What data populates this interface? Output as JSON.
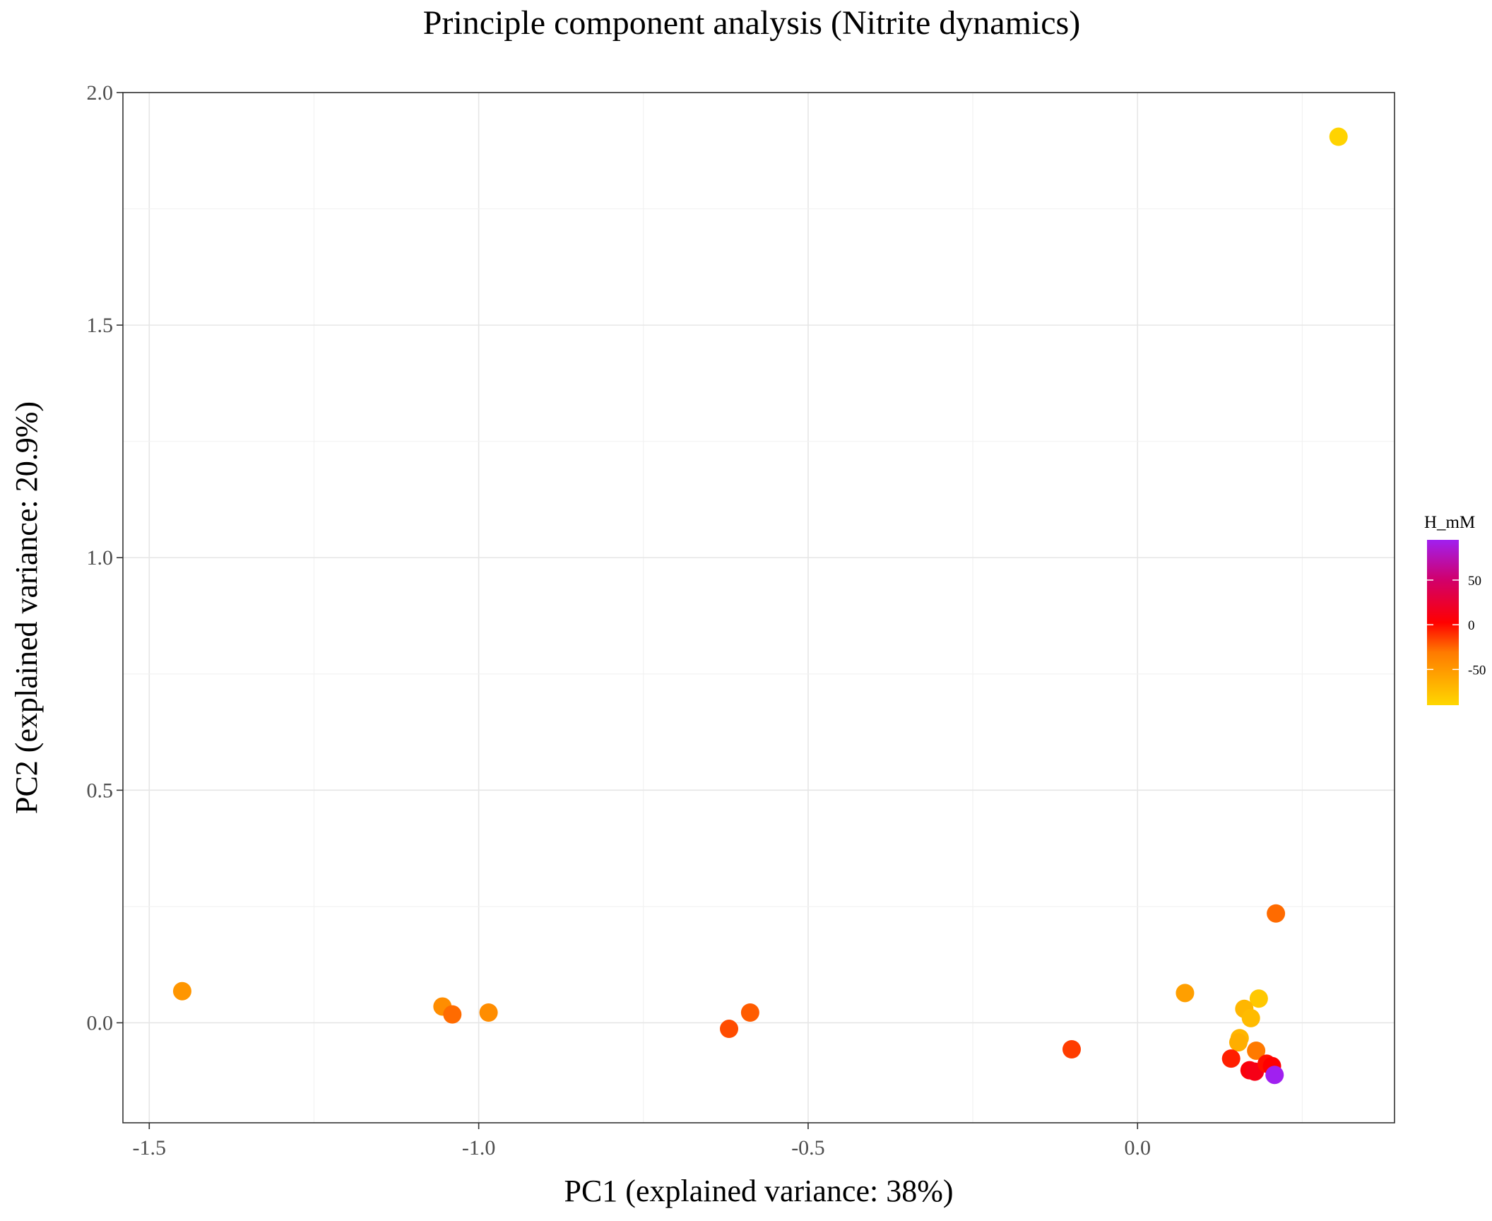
{
  "chart_data": {
    "type": "scatter",
    "title": "Principle component analysis (Nitrite dynamics)",
    "xlabel": "PC1 (explained variance: 38%)",
    "ylabel": "PC2 (explained variance: 20.9%)",
    "xlim": [
      -1.54,
      0.39
    ],
    "ylim": [
      -0.215,
      2.0
    ],
    "x_ticks": [
      -1.5,
      -1.0,
      -0.5,
      0.0
    ],
    "x_tick_labels": [
      "-1.5",
      "-1.0",
      "-0.5",
      "0.0"
    ],
    "y_ticks": [
      0.0,
      0.5,
      1.0,
      1.5,
      2.0
    ],
    "y_tick_labels": [
      "0.0",
      "0.5",
      "1.0",
      "1.5",
      "2.0"
    ],
    "grid": true,
    "legend": {
      "title": "H_mM",
      "placement": "right",
      "range": [
        -90,
        95
      ],
      "ticks": [
        50,
        0,
        -50
      ],
      "tick_labels": [
        "50",
        "0",
        "-50"
      ],
      "colors": [
        "#ffd700",
        "#ff7a00",
        "#ff0000",
        "#d1006c",
        "#a020f0"
      ]
    },
    "points": [
      {
        "x": -1.45,
        "y": 0.068,
        "h": -55
      },
      {
        "x": -1.055,
        "y": 0.035,
        "h": -50
      },
      {
        "x": -1.04,
        "y": 0.018,
        "h": -35
      },
      {
        "x": -0.985,
        "y": 0.022,
        "h": -50
      },
      {
        "x": -0.62,
        "y": -0.013,
        "h": -25
      },
      {
        "x": -0.588,
        "y": 0.022,
        "h": -30
      },
      {
        "x": -0.1,
        "y": -0.057,
        "h": -20
      },
      {
        "x": 0.072,
        "y": 0.064,
        "h": -60
      },
      {
        "x": 0.305,
        "y": 1.905,
        "h": -88
      },
      {
        "x": 0.21,
        "y": 0.235,
        "h": -35
      },
      {
        "x": 0.184,
        "y": 0.052,
        "h": -82
      },
      {
        "x": 0.162,
        "y": 0.03,
        "h": -72
      },
      {
        "x": 0.172,
        "y": 0.01,
        "h": -75
      },
      {
        "x": 0.155,
        "y": -0.033,
        "h": -72
      },
      {
        "x": 0.153,
        "y": -0.042,
        "h": -68
      },
      {
        "x": 0.18,
        "y": -0.06,
        "h": -40
      },
      {
        "x": 0.142,
        "y": -0.077,
        "h": -10
      },
      {
        "x": 0.17,
        "y": -0.102,
        "h": 5
      },
      {
        "x": 0.178,
        "y": -0.105,
        "h": 10
      },
      {
        "x": 0.196,
        "y": -0.088,
        "h": -5
      },
      {
        "x": 0.204,
        "y": -0.093,
        "h": 0
      },
      {
        "x": 0.208,
        "y": -0.112,
        "h": 95
      }
    ]
  }
}
